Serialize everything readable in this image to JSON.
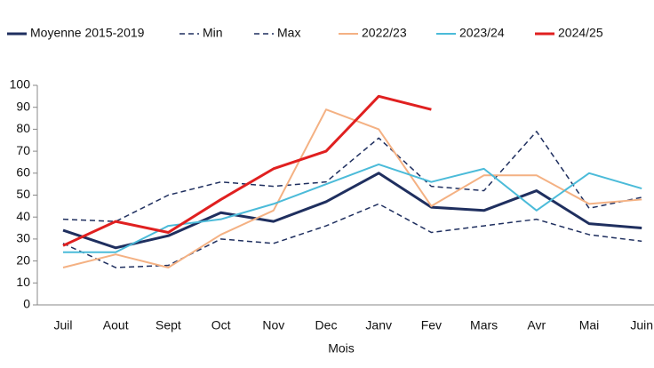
{
  "chart_data": {
    "type": "line",
    "categories": [
      "Juil",
      "Aout",
      "Sept",
      "Oct",
      "Nov",
      "Dec",
      "Janv",
      "Fev",
      "Mars",
      "Avr",
      "Mai",
      "Juin"
    ],
    "xlabel": "Mois",
    "series": [
      {
        "name": "Moyenne 2015-2019",
        "color": "#1f2f5f",
        "dash": false,
        "width": 3,
        "values": [
          34,
          26,
          31.5,
          42,
          38,
          47,
          60,
          44.5,
          43,
          52,
          37,
          35
        ]
      },
      {
        "name": "Min",
        "color": "#1f2f5f",
        "dash": true,
        "width": 1.5,
        "values": [
          28,
          17,
          18,
          30,
          28,
          36,
          46,
          33,
          36,
          39,
          32,
          29
        ]
      },
      {
        "name": "Max",
        "color": "#1f2f5f",
        "dash": true,
        "width": 1.5,
        "values": [
          39,
          38,
          50,
          56,
          54,
          56,
          76,
          54,
          52,
          79,
          44,
          49
        ]
      },
      {
        "name": "2022/23",
        "color": "#f4b183",
        "dash": false,
        "width": 2,
        "values": [
          17,
          23,
          17,
          32,
          43,
          89,
          80,
          45,
          59,
          59,
          46,
          48
        ]
      },
      {
        "name": "2023/24",
        "color": "#4bbbd9",
        "dash": false,
        "width": 2,
        "values": [
          24,
          24,
          36,
          39,
          46,
          55,
          64,
          56,
          62,
          43,
          60,
          53
        ]
      },
      {
        "name": "2024/25",
        "color": "#e02020",
        "dash": false,
        "width": 3,
        "values": [
          27,
          38,
          33,
          48,
          62,
          70,
          95,
          89,
          null,
          null,
          null,
          null
        ]
      }
    ],
    "ylim": [
      0,
      100
    ],
    "yticks": [
      0,
      10,
      20,
      30,
      40,
      50,
      60,
      70,
      80,
      90,
      100
    ],
    "grid": false
  }
}
